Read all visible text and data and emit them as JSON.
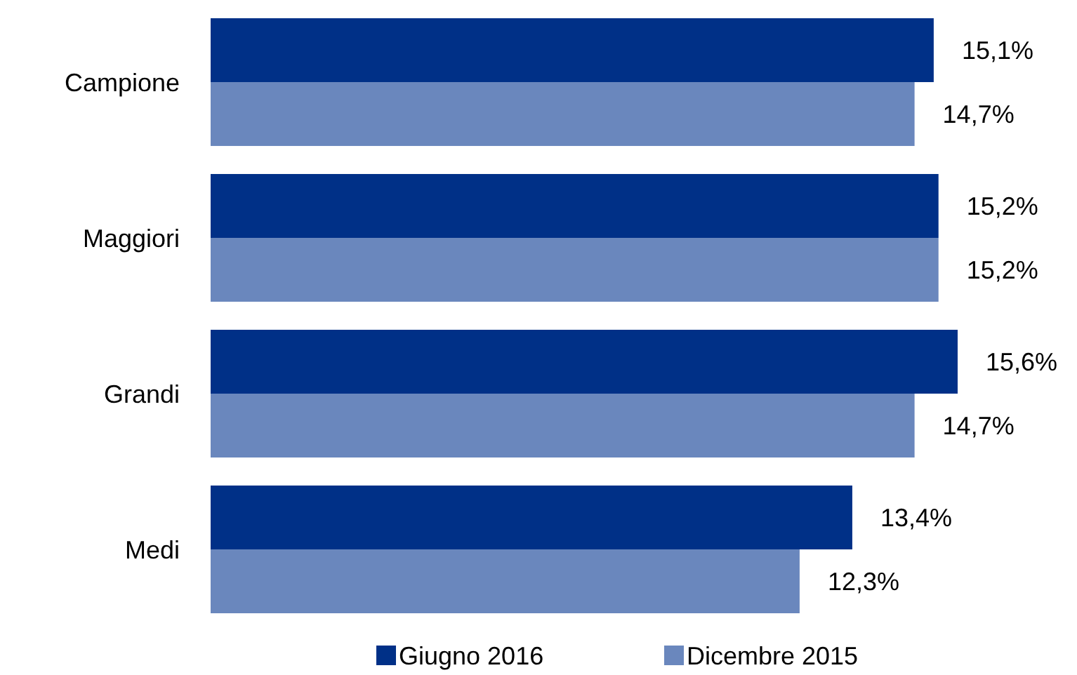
{
  "chart_data": {
    "type": "bar",
    "orientation": "horizontal",
    "categories": [
      "Campione",
      "Maggiori",
      "Grandi",
      "Medi"
    ],
    "series": [
      {
        "name": "Giugno 2016",
        "color": "#003087",
        "values": [
          15.1,
          15.2,
          15.6,
          13.4
        ],
        "value_labels": [
          "15,1%",
          "15,2%",
          "15,6%",
          "13,4%"
        ]
      },
      {
        "name": "Dicembre 2015",
        "color": "#6a87bd",
        "values": [
          14.7,
          15.2,
          14.7,
          12.3
        ],
        "value_labels": [
          "14,7%",
          "15,2%",
          "14,7%",
          "12,3%"
        ]
      }
    ],
    "legend": "bottom"
  }
}
